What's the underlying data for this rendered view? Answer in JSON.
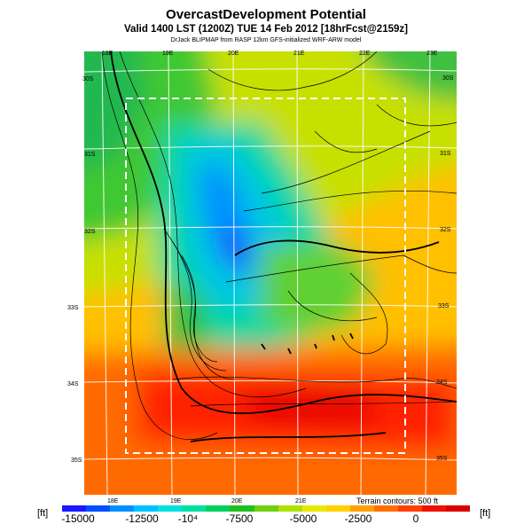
{
  "title": "OvercastDevelopment Potential",
  "subtitle": "Valid 1400 LST (1200Z) TUE 14 Feb 2012 [18hrFcst@2159z]",
  "credit": "DrJack BLIPMAP from RASP 12km GFS-initialized WRF-ARW model",
  "map": {
    "top_lon_labels": [
      "18E",
      "19E",
      "20E",
      "21E",
      "22E",
      "23E"
    ],
    "bottom_lon_labels": [
      "18E",
      "19E",
      "20E",
      "21E"
    ],
    "left_lat_labels": [
      "30S",
      "31S",
      "32S",
      "33S",
      "34S",
      "35S"
    ],
    "right_lat_labels": [
      "30S",
      "31S",
      "32S",
      "33S",
      "34S",
      "35S"
    ]
  },
  "colorbar": {
    "unit_left": "[ft]",
    "unit_right": "[ft]",
    "tick_labels": [
      "-15000",
      "-12500",
      "-10⁴",
      "-7500",
      "-5000",
      "-2500",
      "0"
    ],
    "colors": [
      "#1a1aff",
      "#0050ff",
      "#0090ff",
      "#00c0ff",
      "#00e0e0",
      "#00e0a0",
      "#00d060",
      "#20c020",
      "#70d010",
      "#b0e000",
      "#e8e800",
      "#ffd000",
      "#ffa000",
      "#ff7000",
      "#ff4000",
      "#f01000",
      "#d80000"
    ]
  },
  "terrain_note": "Terrain contours: 500 ft"
}
